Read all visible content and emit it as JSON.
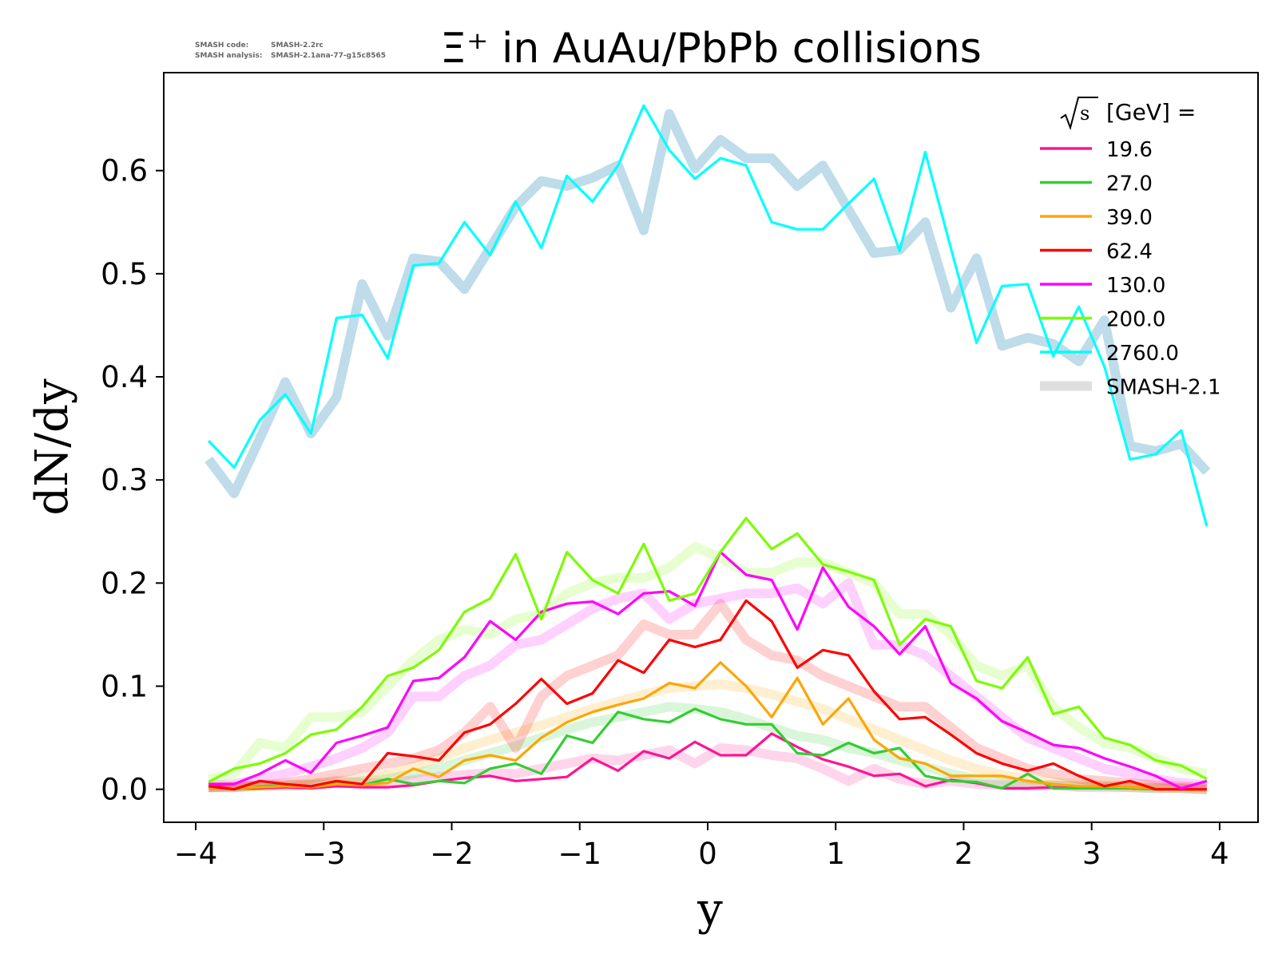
{
  "version_info": {
    "code_label": "SMASH code:",
    "code_value": "SMASH-2.2rc",
    "analysis_label": "SMASH analysis:",
    "analysis_value": "SMASH-2.1ana-77-g15c8565"
  },
  "chart_data": {
    "type": "line",
    "title": "Ξ⁺ in AuAu/PbPb collisions",
    "xlabel": "y",
    "ylabel": "dN/dy",
    "xlim": [
      -4.25,
      4.3
    ],
    "ylim": [
      -0.032,
      0.695
    ],
    "xticks": [
      -4,
      -3,
      -2,
      -1,
      0,
      1,
      2,
      3,
      4
    ],
    "xtick_labels": [
      "−4",
      "−3",
      "−2",
      "−1",
      "0",
      "1",
      "2",
      "3",
      "4"
    ],
    "yticks": [
      0.0,
      0.1,
      0.2,
      0.3,
      0.4,
      0.5,
      0.6
    ],
    "ytick_labels": [
      "0.0",
      "0.1",
      "0.2",
      "0.3",
      "0.4",
      "0.5",
      "0.6"
    ],
    "grid": false,
    "legend": {
      "position": "top-right",
      "title": "[GeV] =",
      "title_symbol": "√s"
    },
    "x": [
      -3.9,
      -3.7,
      -3.5,
      -3.3,
      -3.1,
      -2.9,
      -2.7,
      -2.5,
      -2.3,
      -2.1,
      -1.9,
      -1.7,
      -1.5,
      -1.3,
      -1.1,
      -0.9,
      -0.7,
      -0.5,
      -0.3,
      -0.1,
      0.1,
      0.3,
      0.5,
      0.7,
      0.9,
      1.1,
      1.3,
      1.5,
      1.7,
      1.9,
      2.1,
      2.3,
      2.5,
      2.7,
      2.9,
      3.1,
      3.3,
      3.5,
      3.7,
      3.9
    ],
    "series": [
      {
        "name": "19.6",
        "color": "#ff1493",
        "values": [
          0.004,
          0.001,
          0.001,
          0.002,
          0.001,
          0.003,
          0.002,
          0.002,
          0.004,
          0.008,
          0.011,
          0.013,
          0.008,
          0.01,
          0.012,
          0.03,
          0.018,
          0.037,
          0.03,
          0.046,
          0.033,
          0.033,
          0.054,
          0.041,
          0.029,
          0.022,
          0.013,
          0.015,
          0.003,
          0.009,
          0.006,
          0.001,
          0.001,
          0.002,
          0.001,
          0.002,
          0.001,
          0.0,
          0.0,
          0.0
        ]
      },
      {
        "name": "27.0",
        "color": "#32cd32",
        "values": [
          0.002,
          0.0,
          0.003,
          0.004,
          0.003,
          0.006,
          0.004,
          0.01,
          0.005,
          0.008,
          0.006,
          0.02,
          0.025,
          0.015,
          0.052,
          0.045,
          0.075,
          0.068,
          0.065,
          0.078,
          0.068,
          0.063,
          0.063,
          0.035,
          0.033,
          0.045,
          0.035,
          0.04,
          0.013,
          0.008,
          0.007,
          0.001,
          0.015,
          0.001,
          0.001,
          0.001,
          0.001,
          0.0,
          0.0,
          0.0
        ]
      },
      {
        "name": "39.0",
        "color": "#ffa500",
        "values": [
          0.002,
          0.001,
          0.002,
          0.003,
          0.002,
          0.005,
          0.004,
          0.006,
          0.02,
          0.012,
          0.028,
          0.033,
          0.028,
          0.05,
          0.065,
          0.075,
          0.082,
          0.088,
          0.103,
          0.098,
          0.123,
          0.1,
          0.07,
          0.108,
          0.063,
          0.088,
          0.048,
          0.03,
          0.025,
          0.013,
          0.013,
          0.013,
          0.008,
          0.005,
          0.003,
          0.003,
          0.002,
          0.001,
          0.0,
          0.0
        ]
      },
      {
        "name": "62.4",
        "color": "#ff0000",
        "values": [
          0.003,
          0.0,
          0.008,
          0.005,
          0.003,
          0.008,
          0.005,
          0.035,
          0.032,
          0.028,
          0.055,
          0.063,
          0.083,
          0.107,
          0.083,
          0.093,
          0.125,
          0.113,
          0.145,
          0.138,
          0.145,
          0.183,
          0.163,
          0.118,
          0.135,
          0.13,
          0.095,
          0.068,
          0.07,
          0.053,
          0.035,
          0.025,
          0.018,
          0.025,
          0.013,
          0.003,
          0.008,
          0.0,
          0.0,
          0.0
        ]
      },
      {
        "name": "130.0",
        "color": "#ff00ff",
        "values": [
          0.005,
          0.005,
          0.015,
          0.028,
          0.016,
          0.045,
          0.052,
          0.06,
          0.105,
          0.108,
          0.128,
          0.163,
          0.145,
          0.172,
          0.18,
          0.182,
          0.17,
          0.19,
          0.192,
          0.178,
          0.23,
          0.208,
          0.203,
          0.155,
          0.215,
          0.177,
          0.158,
          0.131,
          0.158,
          0.103,
          0.088,
          0.066,
          0.055,
          0.043,
          0.04,
          0.03,
          0.022,
          0.013,
          0.001,
          0.008
        ]
      },
      {
        "name": "200.0",
        "color": "#7cfc00",
        "values": [
          0.007,
          0.02,
          0.025,
          0.035,
          0.053,
          0.058,
          0.08,
          0.11,
          0.118,
          0.135,
          0.172,
          0.185,
          0.228,
          0.165,
          0.23,
          0.203,
          0.19,
          0.238,
          0.183,
          0.19,
          0.23,
          0.263,
          0.233,
          0.248,
          0.218,
          0.211,
          0.203,
          0.14,
          0.165,
          0.158,
          0.105,
          0.098,
          0.128,
          0.073,
          0.08,
          0.05,
          0.043,
          0.028,
          0.023,
          0.01
        ]
      },
      {
        "name": "2760.0",
        "color": "#00ffff",
        "values": [
          0.338,
          0.312,
          0.358,
          0.383,
          0.345,
          0.457,
          0.46,
          0.418,
          0.508,
          0.51,
          0.55,
          0.518,
          0.57,
          0.525,
          0.595,
          0.57,
          0.605,
          0.663,
          0.62,
          0.592,
          0.612,
          0.605,
          0.55,
          0.543,
          0.543,
          0.568,
          0.592,
          0.522,
          0.618,
          0.525,
          0.433,
          0.488,
          0.49,
          0.42,
          0.468,
          0.41,
          0.32,
          0.325,
          0.348,
          0.255
        ]
      }
    ],
    "reference_series": {
      "name": "SMASH-2.1",
      "opacity": 0.18,
      "line_width": 12,
      "series": [
        {
          "color": "#ff1493",
          "values": [
            0.002,
            0.002,
            0.004,
            0.004,
            0.005,
            0.008,
            0.006,
            0.006,
            0.009,
            0.012,
            0.014,
            0.016,
            0.015,
            0.02,
            0.025,
            0.03,
            0.028,
            0.033,
            0.038,
            0.025,
            0.04,
            0.038,
            0.033,
            0.03,
            0.02,
            0.008,
            0.02,
            0.01,
            0.005,
            0.008,
            0.005,
            0.004,
            0.003,
            0.004,
            0.002,
            0.002,
            0.002,
            0.001,
            0.001,
            0.0
          ]
        },
        {
          "color": "#32cd32",
          "values": [
            0.002,
            0.002,
            0.003,
            0.003,
            0.004,
            0.005,
            0.008,
            0.01,
            0.015,
            0.02,
            0.028,
            0.035,
            0.042,
            0.05,
            0.058,
            0.065,
            0.07,
            0.075,
            0.08,
            0.078,
            0.075,
            0.068,
            0.06,
            0.052,
            0.048,
            0.04,
            0.035,
            0.028,
            0.022,
            0.015,
            0.01,
            0.007,
            0.005,
            0.004,
            0.003,
            0.003,
            0.002,
            0.001,
            0.001,
            0.0
          ]
        },
        {
          "color": "#ffa500",
          "values": [
            0.002,
            0.002,
            0.003,
            0.004,
            0.005,
            0.008,
            0.01,
            0.015,
            0.022,
            0.03,
            0.04,
            0.048,
            0.055,
            0.062,
            0.07,
            0.078,
            0.085,
            0.092,
            0.098,
            0.1,
            0.102,
            0.098,
            0.092,
            0.085,
            0.078,
            0.068,
            0.058,
            0.048,
            0.038,
            0.028,
            0.02,
            0.014,
            0.01,
            0.007,
            0.005,
            0.004,
            0.003,
            0.002,
            0.001,
            0.0
          ]
        },
        {
          "color": "#ff0000",
          "values": [
            0.002,
            0.003,
            0.004,
            0.006,
            0.01,
            0.015,
            0.02,
            0.025,
            0.03,
            0.038,
            0.055,
            0.08,
            0.04,
            0.09,
            0.11,
            0.12,
            0.13,
            0.16,
            0.15,
            0.15,
            0.18,
            0.145,
            0.13,
            0.125,
            0.11,
            0.1,
            0.09,
            0.08,
            0.08,
            0.06,
            0.04,
            0.03,
            0.02,
            0.015,
            0.01,
            0.008,
            0.006,
            0.004,
            0.003,
            0.002
          ]
        },
        {
          "color": "#ff00ff",
          "values": [
            0.004,
            0.005,
            0.01,
            0.015,
            0.022,
            0.03,
            0.04,
            0.055,
            0.09,
            0.09,
            0.11,
            0.12,
            0.14,
            0.145,
            0.16,
            0.175,
            0.185,
            0.19,
            0.165,
            0.18,
            0.185,
            0.19,
            0.19,
            0.195,
            0.18,
            0.2,
            0.14,
            0.14,
            0.13,
            0.11,
            0.09,
            0.07,
            0.05,
            0.04,
            0.03,
            0.02,
            0.015,
            0.01,
            0.006,
            0.004
          ]
        },
        {
          "color": "#7cfc00",
          "values": [
            0.01,
            0.015,
            0.045,
            0.04,
            0.07,
            0.07,
            0.075,
            0.1,
            0.125,
            0.145,
            0.155,
            0.15,
            0.165,
            0.17,
            0.19,
            0.2,
            0.205,
            0.205,
            0.215,
            0.235,
            0.225,
            0.21,
            0.21,
            0.22,
            0.22,
            0.21,
            0.2,
            0.17,
            0.17,
            0.15,
            0.12,
            0.11,
            0.12,
            0.08,
            0.06,
            0.045,
            0.04,
            0.03,
            0.02,
            0.015
          ]
        },
        {
          "color": "#6eb1cf",
          "opacity": 0.45,
          "values": [
            0.32,
            0.287,
            0.34,
            0.395,
            0.345,
            0.38,
            0.49,
            0.44,
            0.515,
            0.512,
            0.485,
            0.525,
            0.565,
            0.59,
            0.585,
            0.593,
            0.605,
            0.542,
            0.655,
            0.602,
            0.63,
            0.612,
            0.612,
            0.585,
            0.605,
            0.562,
            0.52,
            0.523,
            0.55,
            0.467,
            0.515,
            0.43,
            0.438,
            0.432,
            0.415,
            0.455,
            0.333,
            0.328,
            0.335,
            0.308
          ]
        }
      ]
    }
  }
}
